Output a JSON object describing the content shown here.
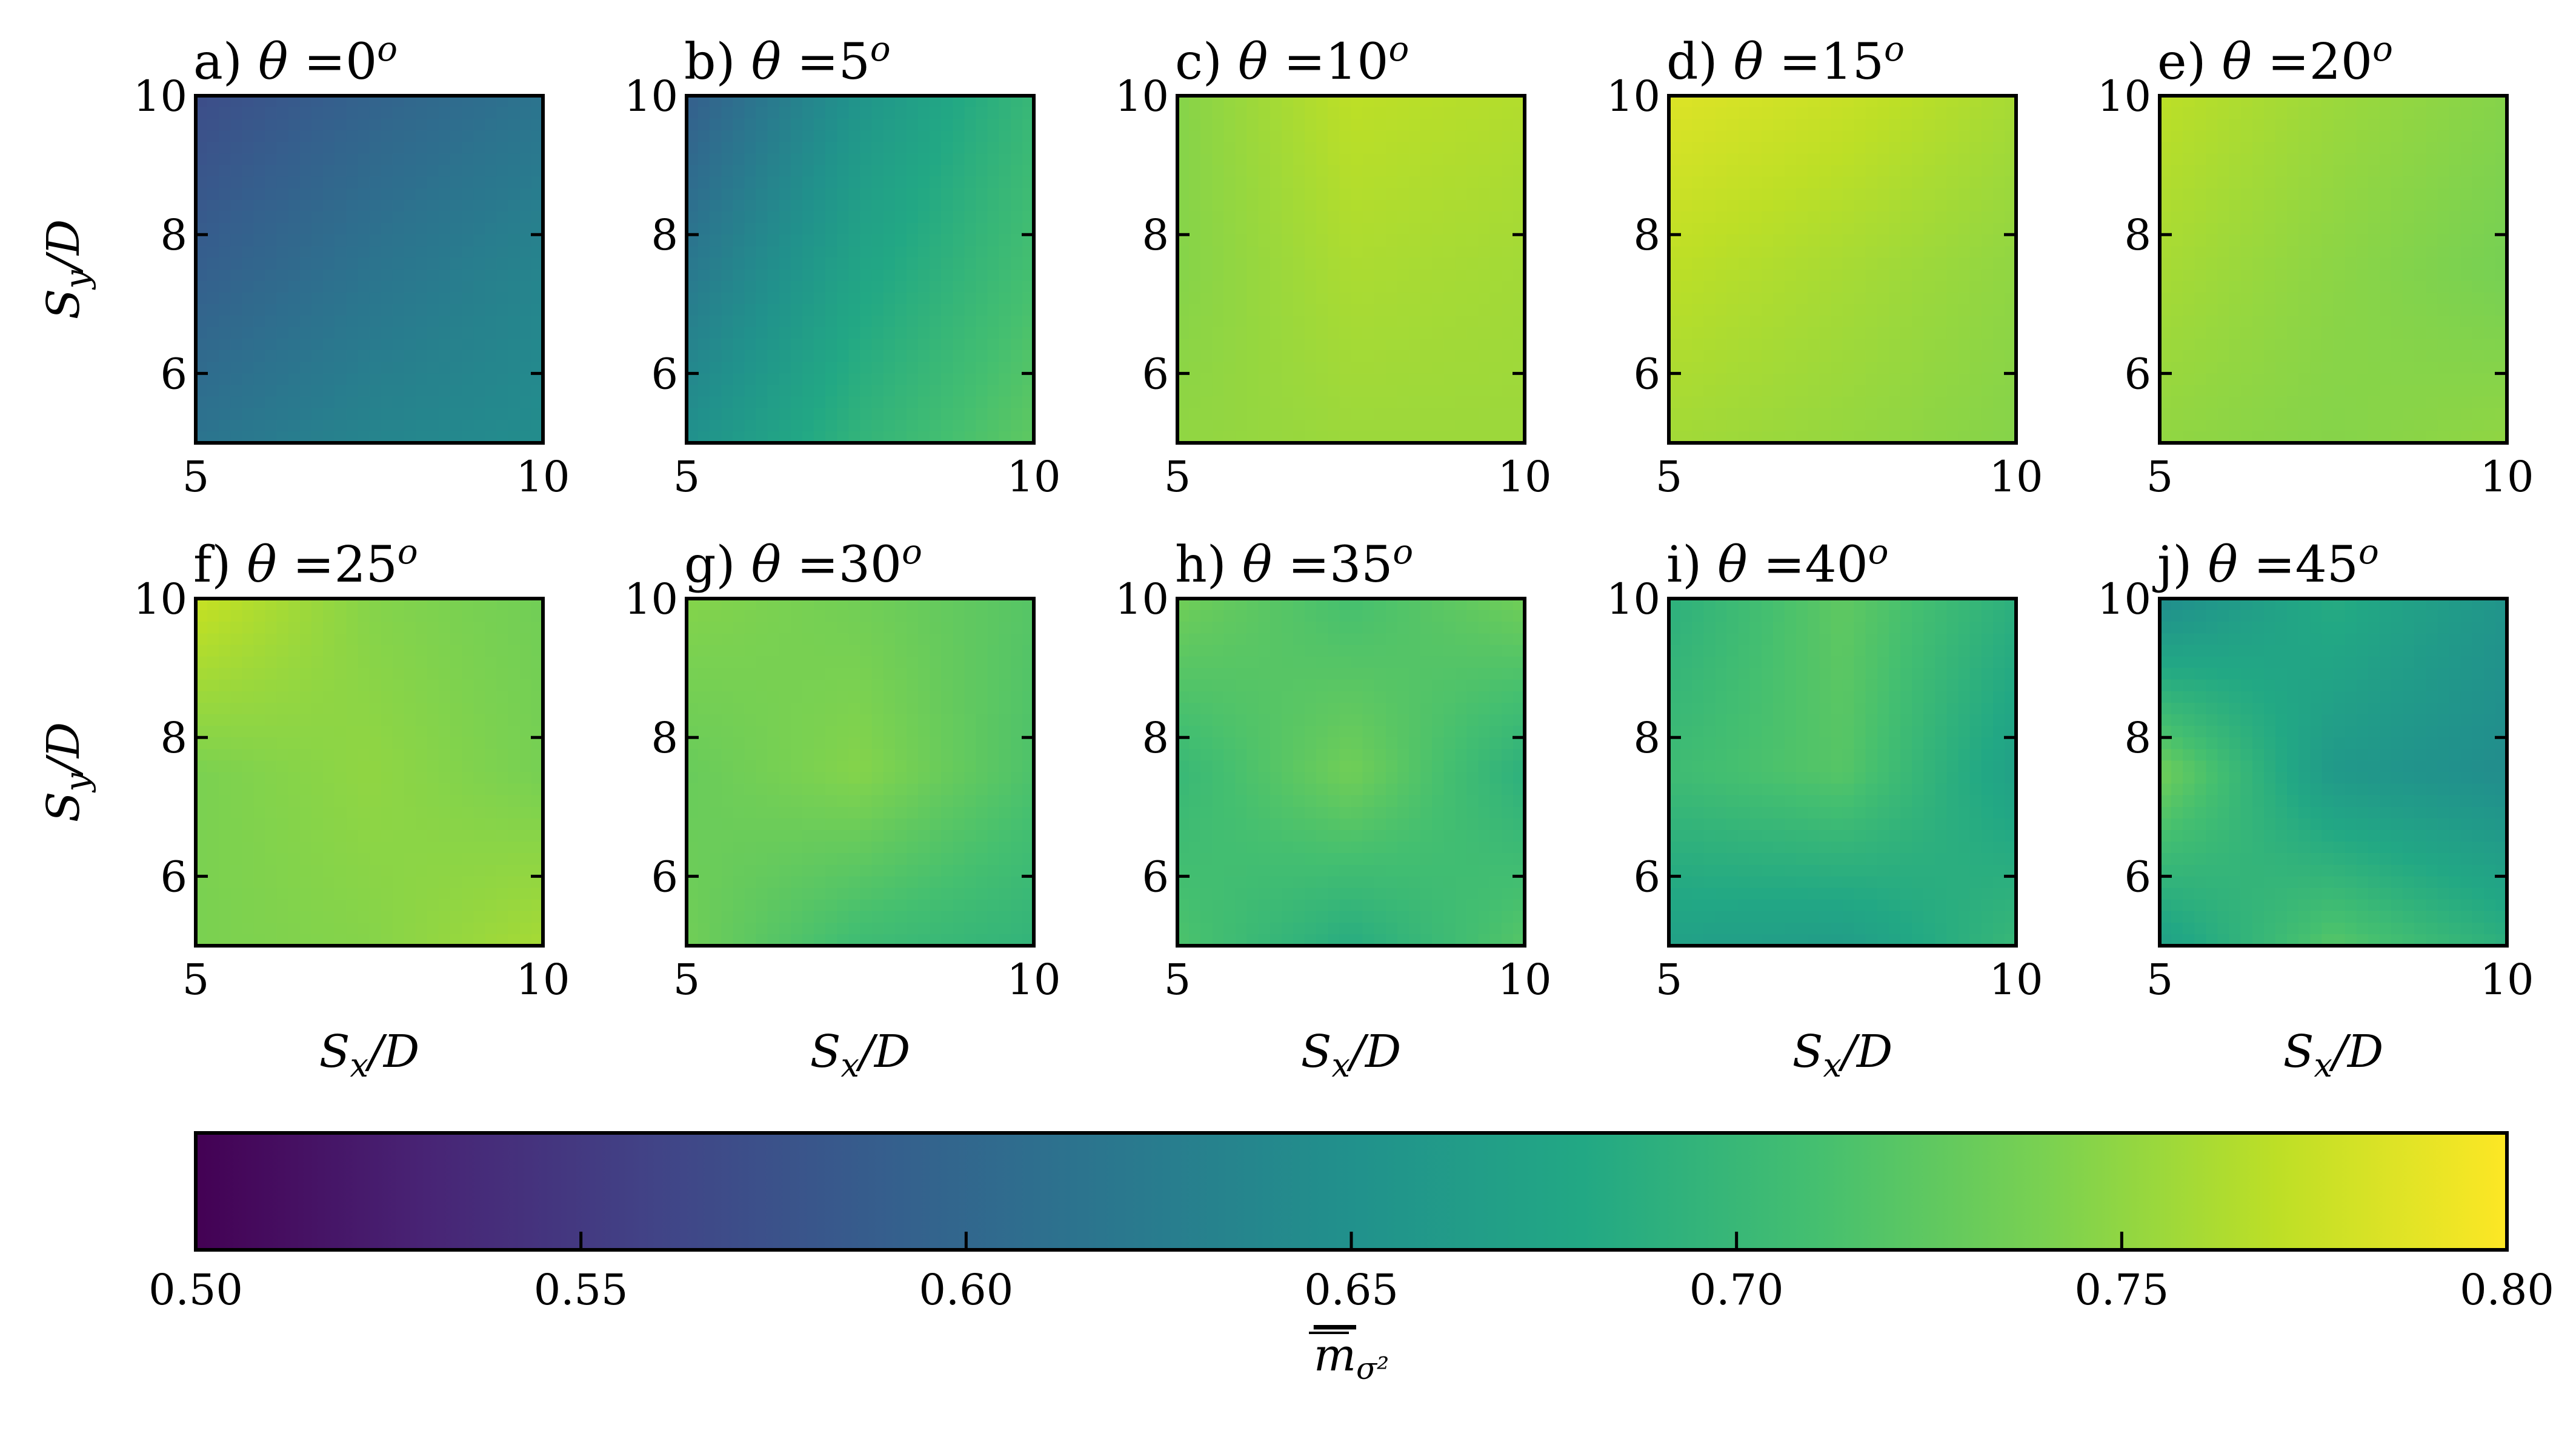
{
  "colormap": {
    "name": "viridis",
    "stops": [
      "#440154",
      "#482475",
      "#414487",
      "#355f8d",
      "#2a788e",
      "#21918c",
      "#22a884",
      "#44bf70",
      "#7ad151",
      "#bddf26",
      "#fde725"
    ]
  },
  "chart_data": {
    "type": "heatmap",
    "grid_rows": 2,
    "grid_cols": 5,
    "xlabel": "S_x/D",
    "ylabel": "S_y/D",
    "xlim": [
      5,
      10
    ],
    "ylim": [
      5,
      10
    ],
    "xticks": [
      5,
      10
    ],
    "yticks": [
      6,
      8,
      10
    ],
    "value_grid_x": [
      5,
      7.5,
      10
    ],
    "value_grid_y": [
      10,
      7.5,
      5
    ],
    "panels": [
      {
        "label": "a)",
        "theta": "0",
        "title": "a) θ =0ᵒ",
        "values": [
          [
            0.57,
            0.595,
            0.615
          ],
          [
            0.59,
            0.615,
            0.635
          ],
          [
            0.615,
            0.635,
            0.645
          ]
        ]
      },
      {
        "label": "b)",
        "theta": "5",
        "title": "b) θ =5ᵒ",
        "values": [
          [
            0.59,
            0.655,
            0.7
          ],
          [
            0.62,
            0.675,
            0.71
          ],
          [
            0.65,
            0.695,
            0.725
          ]
        ]
      },
      {
        "label": "c)",
        "theta": "10",
        "title": "c) θ =10ᵒ",
        "values": [
          [
            0.745,
            0.77,
            0.765
          ],
          [
            0.745,
            0.762,
            0.758
          ],
          [
            0.75,
            0.755,
            0.755
          ]
        ]
      },
      {
        "label": "d)",
        "theta": "15",
        "title": "d) θ =15ᵒ",
        "values": [
          [
            0.785,
            0.775,
            0.76
          ],
          [
            0.77,
            0.76,
            0.75
          ],
          [
            0.758,
            0.752,
            0.745
          ]
        ]
      },
      {
        "label": "e)",
        "theta": "20",
        "title": "e) θ =20ᵒ",
        "values": [
          [
            0.77,
            0.755,
            0.745
          ],
          [
            0.76,
            0.748,
            0.738
          ],
          [
            0.75,
            0.745,
            0.75
          ]
        ]
      },
      {
        "label": "f)",
        "theta": "25",
        "title": "f) θ =25ᵒ",
        "values": [
          [
            0.775,
            0.745,
            0.735
          ],
          [
            0.74,
            0.75,
            0.738
          ],
          [
            0.74,
            0.745,
            0.76
          ]
        ]
      },
      {
        "label": "g)",
        "theta": "30",
        "title": "g) θ =30ᵒ",
        "values": [
          [
            0.745,
            0.735,
            0.72
          ],
          [
            0.73,
            0.745,
            0.715
          ],
          [
            0.735,
            0.705,
            0.695
          ]
        ]
      },
      {
        "label": "h)",
        "theta": "35",
        "title": "h) θ =35ᵒ",
        "values": [
          [
            0.735,
            0.71,
            0.735
          ],
          [
            0.7,
            0.735,
            0.69
          ],
          [
            0.715,
            0.685,
            0.72
          ]
        ]
      },
      {
        "label": "i)",
        "theta": "40",
        "title": "i) θ =40ᵒ",
        "values": [
          [
            0.69,
            0.725,
            0.69
          ],
          [
            0.705,
            0.72,
            0.67
          ],
          [
            0.67,
            0.665,
            0.7
          ]
        ]
      },
      {
        "label": "j)",
        "theta": "45",
        "title": "j) θ =45ᵒ",
        "values": [
          [
            0.645,
            0.685,
            0.655
          ],
          [
            0.735,
            0.66,
            0.645
          ],
          [
            0.67,
            0.72,
            0.69
          ]
        ]
      }
    ],
    "colorbar": {
      "label": "m̅ σ²",
      "label_main": "m",
      "label_sub": "σ²",
      "range": [
        0.5,
        0.8
      ],
      "ticks": [
        "0.50",
        "0.55",
        "0.60",
        "0.65",
        "0.70",
        "0.75",
        "0.80"
      ],
      "orientation": "horizontal",
      "placement": "bottom"
    }
  }
}
